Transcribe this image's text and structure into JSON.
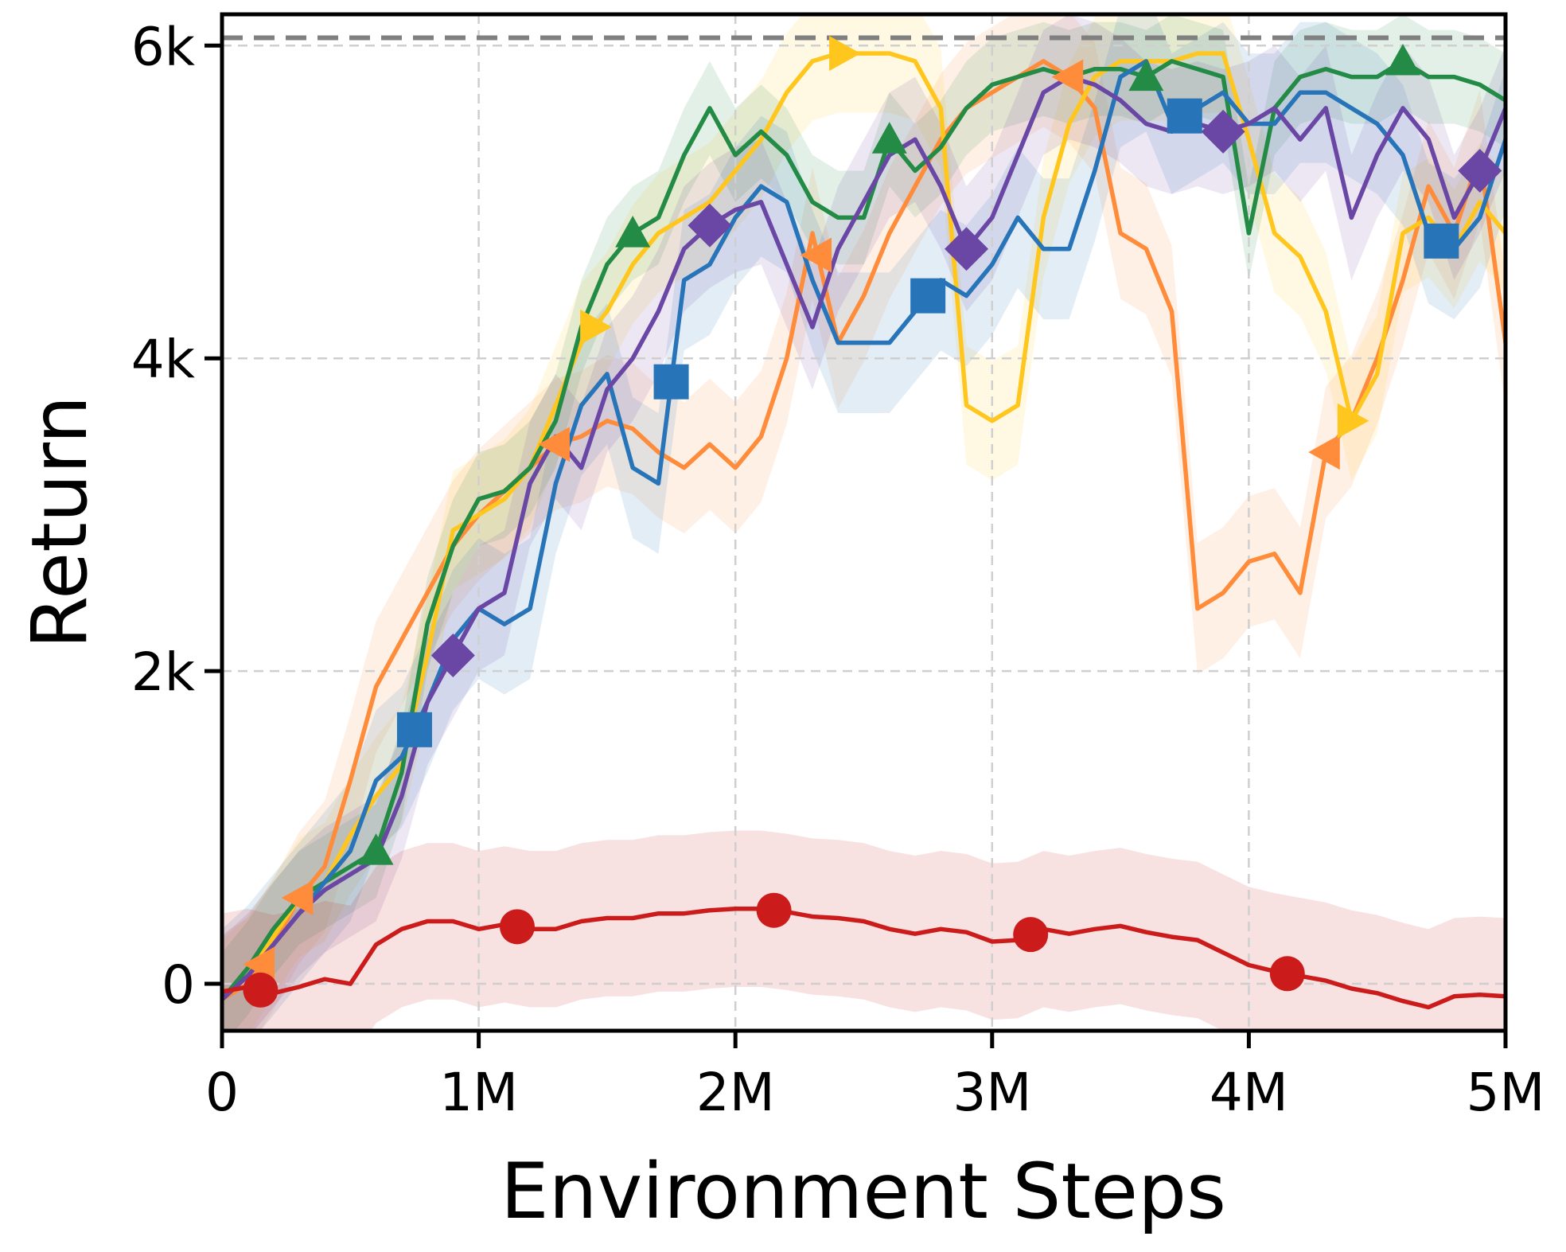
{
  "chart_data": {
    "type": "line",
    "xlabel": "Environment Steps",
    "ylabel": "Return",
    "xlim": [
      0,
      5000000
    ],
    "ylim": [
      -300,
      6200
    ],
    "grid": true,
    "x_ticks": [
      {
        "value": 0,
        "label": "0"
      },
      {
        "value": 1000000,
        "label": "1M"
      },
      {
        "value": 2000000,
        "label": "2M"
      },
      {
        "value": 3000000,
        "label": "3M"
      },
      {
        "value": 4000000,
        "label": "4M"
      },
      {
        "value": 5000000,
        "label": "5M"
      }
    ],
    "y_ticks": [
      {
        "value": 0,
        "label": "0"
      },
      {
        "value": 2000,
        "label": "2k"
      },
      {
        "value": 4000,
        "label": "4k"
      },
      {
        "value": 6000,
        "label": "6k"
      }
    ],
    "reference_line": {
      "y": 6050,
      "color": "#808080",
      "style": "dashed"
    },
    "x": [
      0,
      100000,
      200000,
      300000,
      400000,
      500000,
      600000,
      700000,
      800000,
      900000,
      1000000,
      1100000,
      1200000,
      1300000,
      1400000,
      1500000,
      1600000,
      1700000,
      1800000,
      1900000,
      2000000,
      2100000,
      2200000,
      2300000,
      2400000,
      2500000,
      2600000,
      2700000,
      2800000,
      2900000,
      3000000,
      3100000,
      3200000,
      3300000,
      3400000,
      3500000,
      3600000,
      3700000,
      3800000,
      3900000,
      4000000,
      4100000,
      4200000,
      4300000,
      4400000,
      4500000,
      4600000,
      4700000,
      4800000,
      4900000,
      5000000
    ],
    "series": [
      {
        "color": "#ff8c3a",
        "marker": "triangle-left",
        "values": [
          -100,
          0,
          250,
          550,
          750,
          1300,
          1900,
          2200,
          2500,
          2800,
          3000,
          3150,
          3300,
          3450,
          3500,
          3600,
          3550,
          3400,
          3300,
          3450,
          3300,
          3500,
          4000,
          4800,
          4100,
          4400,
          4800,
          5100,
          5400,
          5600,
          5700,
          5800,
          5900,
          5800,
          5600,
          4800,
          4700,
          4300,
          2400,
          2500,
          2700,
          2750,
          2500,
          3400,
          3600,
          4000,
          4500,
          5100,
          4800,
          5300,
          4100
        ],
        "band": 420,
        "marker_x": [
          150000,
          300000,
          1300000,
          2320000,
          3300000,
          4300000
        ]
      },
      {
        "color": "#ffc61e",
        "marker": "triangle-right",
        "values": [
          -100,
          50,
          300,
          550,
          650,
          950,
          1200,
          1400,
          2100,
          2900,
          3000,
          3100,
          3300,
          3700,
          4100,
          4300,
          4600,
          4800,
          4900,
          5000,
          5200,
          5400,
          5700,
          5900,
          5950,
          5950,
          5950,
          5900,
          5600,
          3700,
          3600,
          3700,
          4900,
          5500,
          5800,
          5900,
          5900,
          5900,
          5950,
          5950,
          5400,
          4800,
          4650,
          4300,
          3600,
          3900,
          4800,
          4900,
          4700,
          5000,
          4800
        ],
        "band": 380,
        "marker_x": [
          1450000,
          2420000,
          4400000
        ]
      },
      {
        "color": "#238b45",
        "marker": "triangle-up",
        "values": [
          -100,
          100,
          350,
          550,
          650,
          750,
          850,
          1350,
          2300,
          2800,
          3100,
          3150,
          3300,
          3600,
          4200,
          4600,
          4800,
          4900,
          5300,
          5600,
          5300,
          5450,
          5300,
          5000,
          4900,
          4900,
          5400,
          5200,
          5350,
          5600,
          5750,
          5800,
          5850,
          5800,
          5850,
          5850,
          5800,
          5900,
          5850,
          5800,
          4800,
          5600,
          5800,
          5850,
          5800,
          5800,
          5900,
          5800,
          5800,
          5750,
          5650
        ],
        "band": 300,
        "marker_x": [
          600000,
          1600000,
          2600000,
          3600000,
          4600000
        ]
      },
      {
        "color": "#2874b8",
        "marker": "square",
        "values": [
          -100,
          50,
          250,
          450,
          650,
          850,
          1300,
          1450,
          1800,
          2200,
          2400,
          2300,
          2400,
          3200,
          3700,
          3900,
          3300,
          3200,
          4500,
          4600,
          4900,
          5100,
          5000,
          4500,
          4100,
          4100,
          4100,
          4300,
          4500,
          4400,
          4600,
          4900,
          4700,
          4700,
          5200,
          5800,
          5900,
          5500,
          5600,
          5700,
          5500,
          5500,
          5700,
          5700,
          5600,
          5500,
          5300,
          4800,
          4700,
          4900,
          5400
        ],
        "band": 450,
        "marker_x": [
          750000,
          1750000,
          2750000,
          3750000,
          4750000
        ]
      },
      {
        "color": "#6a47a5",
        "marker": "diamond",
        "values": [
          -100,
          50,
          250,
          450,
          600,
          700,
          800,
          1200,
          1800,
          2100,
          2400,
          2500,
          3200,
          3500,
          3300,
          3800,
          4000,
          4300,
          4700,
          4850,
          4950,
          5000,
          4600,
          4200,
          4700,
          5000,
          5300,
          5400,
          5100,
          4700,
          4900,
          5300,
          5700,
          5800,
          5750,
          5650,
          5500,
          5450,
          5500,
          5450,
          5500,
          5600,
          5400,
          5600,
          4900,
          5300,
          5600,
          5400,
          4900,
          5200,
          5600
        ],
        "band": 400,
        "marker_x": [
          900000,
          1900000,
          2900000,
          3900000,
          4900000
        ]
      },
      {
        "color": "#cc1b1b",
        "marker": "circle",
        "values": [
          -50,
          -20,
          -60,
          -20,
          30,
          0,
          250,
          350,
          400,
          400,
          350,
          380,
          350,
          350,
          400,
          420,
          420,
          450,
          450,
          470,
          480,
          480,
          460,
          430,
          420,
          400,
          350,
          320,
          350,
          330,
          270,
          280,
          350,
          320,
          350,
          370,
          330,
          300,
          280,
          200,
          120,
          80,
          50,
          20,
          -30,
          -60,
          -110,
          -150,
          -80,
          -70,
          -80
        ],
        "band": 500,
        "marker_x": [
          150000,
          1150000,
          2150000,
          3150000,
          4150000
        ]
      }
    ]
  }
}
